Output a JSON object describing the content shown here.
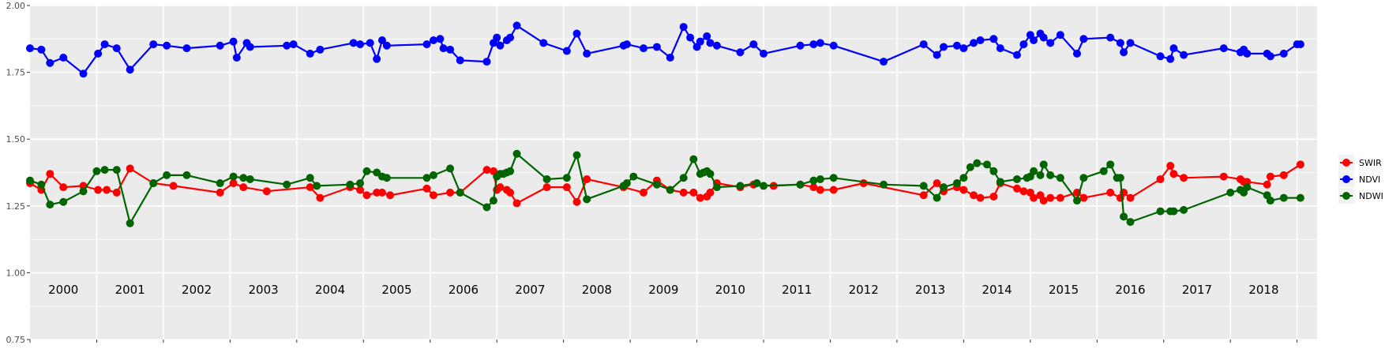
{
  "chart_data": {
    "type": "line",
    "panel_background": "#ebebeb",
    "grid": true,
    "grid_color": "#ffffff",
    "legend_position": "right",
    "ylim": [
      0.75,
      2.0
    ],
    "y_ticks": [
      {
        "value": 0.75,
        "label": "0.75"
      },
      {
        "value": 1.0,
        "label": "1.00"
      },
      {
        "value": 1.25,
        "label": "1.25"
      },
      {
        "value": 1.5,
        "label": "1.50"
      },
      {
        "value": 1.75,
        "label": "1.75"
      },
      {
        "value": 2.0,
        "label": "2.00"
      }
    ],
    "xlim": [
      2000.0,
      2019.3
    ],
    "x_axis_ticks_at_year_starts": true,
    "years": [
      "2000",
      "2001",
      "2002",
      "2003",
      "2004",
      "2005",
      "2006",
      "2007",
      "2008",
      "2009",
      "2010",
      "2011",
      "2012",
      "2013",
      "2014",
      "2015",
      "2016",
      "2017",
      "2018"
    ],
    "series": [
      {
        "name": "SWIR",
        "color": "#ff0000",
        "x": [
          2000.0,
          2000.17,
          2000.3,
          2000.5,
          2000.8,
          2001.02,
          2001.15,
          2001.3,
          2001.5,
          2001.85,
          2002.15,
          2002.85,
          2003.05,
          2003.2,
          2003.55,
          2004.2,
          2004.35,
          2004.8,
          2004.95,
          2005.05,
          2005.2,
          2005.28,
          2005.4,
          2005.95,
          2006.05,
          2006.3,
          2006.45,
          2006.85,
          2006.95,
          2007.0,
          2007.05,
          2007.15,
          2007.2,
          2007.3,
          2007.75,
          2008.05,
          2008.2,
          2008.35,
          2008.9,
          2009.2,
          2009.4,
          2009.6,
          2009.8,
          2009.95,
          2010.05,
          2010.15,
          2010.2,
          2010.3,
          2010.65,
          2010.85,
          2011.15,
          2011.55,
          2011.75,
          2011.85,
          2012.05,
          2012.5,
          2013.4,
          2013.6,
          2013.7,
          2013.9,
          2014.0,
          2014.15,
          2014.25,
          2014.45,
          2014.55,
          2014.8,
          2014.9,
          2015.0,
          2015.05,
          2015.15,
          2015.2,
          2015.3,
          2015.45,
          2015.7,
          2015.8,
          2016.2,
          2016.35,
          2016.4,
          2016.5,
          2016.95,
          2017.1,
          2017.15,
          2017.3,
          2017.9,
          2018.15,
          2018.2,
          2018.25,
          2018.55,
          2018.6,
          2018.8,
          2019.05
        ],
        "values": [
          1.335,
          1.31,
          1.37,
          1.32,
          1.325,
          1.31,
          1.31,
          1.3,
          1.39,
          1.335,
          1.325,
          1.3,
          1.335,
          1.32,
          1.305,
          1.32,
          1.28,
          1.32,
          1.31,
          1.29,
          1.3,
          1.3,
          1.29,
          1.315,
          1.29,
          1.3,
          1.3,
          1.385,
          1.38,
          1.31,
          1.32,
          1.31,
          1.3,
          1.26,
          1.32,
          1.32,
          1.265,
          1.35,
          1.32,
          1.3,
          1.345,
          1.31,
          1.3,
          1.3,
          1.28,
          1.285,
          1.3,
          1.335,
          1.32,
          1.33,
          1.325,
          1.33,
          1.32,
          1.31,
          1.31,
          1.335,
          1.29,
          1.335,
          1.305,
          1.32,
          1.31,
          1.29,
          1.28,
          1.285,
          1.335,
          1.315,
          1.305,
          1.3,
          1.28,
          1.29,
          1.27,
          1.28,
          1.28,
          1.3,
          1.28,
          1.3,
          1.28,
          1.3,
          1.28,
          1.35,
          1.4,
          1.37,
          1.355,
          1.36,
          1.35,
          1.34,
          1.34,
          1.33,
          1.36,
          1.365,
          1.405
        ]
      },
      {
        "name": "NDVI",
        "color": "#0000ff",
        "x": [
          2000.0,
          2000.17,
          2000.3,
          2000.5,
          2000.8,
          2001.02,
          2001.12,
          2001.3,
          2001.5,
          2001.85,
          2002.05,
          2002.35,
          2002.85,
          2003.05,
          2003.1,
          2003.25,
          2003.3,
          2003.85,
          2003.95,
          2004.2,
          2004.35,
          2004.85,
          2004.95,
          2005.1,
          2005.2,
          2005.28,
          2005.35,
          2005.95,
          2006.05,
          2006.15,
          2006.2,
          2006.3,
          2006.45,
          2006.85,
          2006.95,
          2007.0,
          2007.05,
          2007.15,
          2007.2,
          2007.3,
          2007.7,
          2008.05,
          2008.2,
          2008.35,
          2008.9,
          2008.95,
          2009.2,
          2009.4,
          2009.6,
          2009.8,
          2009.9,
          2010.0,
          2010.05,
          2010.15,
          2010.2,
          2010.3,
          2010.65,
          2010.85,
          2011.0,
          2011.55,
          2011.75,
          2011.85,
          2012.05,
          2012.8,
          2013.4,
          2013.6,
          2013.7,
          2013.9,
          2014.0,
          2014.15,
          2014.25,
          2014.45,
          2014.55,
          2014.8,
          2014.9,
          2015.0,
          2015.05,
          2015.15,
          2015.2,
          2015.3,
          2015.45,
          2015.7,
          2015.8,
          2016.2,
          2016.35,
          2016.4,
          2016.5,
          2016.95,
          2017.1,
          2017.15,
          2017.3,
          2017.9,
          2018.15,
          2018.2,
          2018.25,
          2018.55,
          2018.6,
          2018.8,
          2019.0,
          2019.05
        ],
        "values": [
          1.84,
          1.835,
          1.785,
          1.805,
          1.745,
          1.82,
          1.855,
          1.84,
          1.76,
          1.855,
          1.85,
          1.84,
          1.85,
          1.865,
          1.805,
          1.86,
          1.845,
          1.85,
          1.855,
          1.82,
          1.835,
          1.86,
          1.855,
          1.86,
          1.8,
          1.87,
          1.85,
          1.855,
          1.87,
          1.875,
          1.84,
          1.835,
          1.795,
          1.79,
          1.86,
          1.88,
          1.85,
          1.87,
          1.88,
          1.925,
          1.86,
          1.83,
          1.895,
          1.82,
          1.85,
          1.855,
          1.84,
          1.845,
          1.805,
          1.92,
          1.88,
          1.845,
          1.865,
          1.885,
          1.86,
          1.85,
          1.825,
          1.855,
          1.82,
          1.85,
          1.855,
          1.86,
          1.85,
          1.79,
          1.855,
          1.815,
          1.845,
          1.85,
          1.84,
          1.86,
          1.87,
          1.875,
          1.84,
          1.815,
          1.855,
          1.89,
          1.87,
          1.895,
          1.88,
          1.86,
          1.89,
          1.82,
          1.875,
          1.88,
          1.86,
          1.825,
          1.86,
          1.81,
          1.8,
          1.84,
          1.815,
          1.84,
          1.825,
          1.835,
          1.82,
          1.82,
          1.81,
          1.82,
          1.855,
          1.855
        ]
      },
      {
        "name": "NDWI",
        "color": "#006400",
        "x": [
          2000.0,
          2000.17,
          2000.3,
          2000.5,
          2000.8,
          2001.0,
          2001.12,
          2001.3,
          2001.5,
          2001.85,
          2002.05,
          2002.35,
          2002.85,
          2003.05,
          2003.2,
          2003.3,
          2003.85,
          2004.2,
          2004.3,
          2004.8,
          2004.95,
          2005.05,
          2005.2,
          2005.28,
          2005.35,
          2005.95,
          2006.05,
          2006.3,
          2006.45,
          2006.85,
          2006.95,
          2007.0,
          2007.05,
          2007.1,
          2007.15,
          2007.2,
          2007.3,
          2007.75,
          2008.05,
          2008.2,
          2008.35,
          2008.9,
          2008.95,
          2009.05,
          2009.4,
          2009.6,
          2009.8,
          2009.95,
          2010.05,
          2010.1,
          2010.15,
          2010.2,
          2010.3,
          2010.65,
          2010.9,
          2011.0,
          2011.55,
          2011.75,
          2011.85,
          2012.05,
          2012.8,
          2013.4,
          2013.6,
          2013.7,
          2013.9,
          2014.0,
          2014.1,
          2014.2,
          2014.35,
          2014.45,
          2014.55,
          2014.8,
          2014.95,
          2015.0,
          2015.05,
          2015.15,
          2015.2,
          2015.3,
          2015.45,
          2015.7,
          2015.8,
          2016.1,
          2016.2,
          2016.3,
          2016.35,
          2016.4,
          2016.5,
          2016.95,
          2017.1,
          2017.15,
          2017.3,
          2018.0,
          2018.15,
          2018.2,
          2018.25,
          2018.55,
          2018.6,
          2018.8,
          2019.05
        ],
        "values": [
          1.345,
          1.33,
          1.255,
          1.265,
          1.305,
          1.38,
          1.385,
          1.385,
          1.185,
          1.335,
          1.365,
          1.365,
          1.335,
          1.36,
          1.355,
          1.35,
          1.33,
          1.355,
          1.325,
          1.33,
          1.335,
          1.38,
          1.375,
          1.36,
          1.355,
          1.355,
          1.365,
          1.39,
          1.3,
          1.245,
          1.27,
          1.36,
          1.37,
          1.37,
          1.375,
          1.38,
          1.445,
          1.35,
          1.355,
          1.44,
          1.275,
          1.325,
          1.335,
          1.36,
          1.33,
          1.31,
          1.355,
          1.425,
          1.37,
          1.375,
          1.38,
          1.37,
          1.32,
          1.325,
          1.335,
          1.325,
          1.33,
          1.345,
          1.35,
          1.355,
          1.33,
          1.325,
          1.28,
          1.32,
          1.335,
          1.355,
          1.395,
          1.41,
          1.405,
          1.38,
          1.34,
          1.35,
          1.355,
          1.36,
          1.38,
          1.365,
          1.405,
          1.365,
          1.355,
          1.27,
          1.355,
          1.38,
          1.405,
          1.355,
          1.355,
          1.21,
          1.19,
          1.23,
          1.23,
          1.23,
          1.235,
          1.3,
          1.31,
          1.3,
          1.32,
          1.29,
          1.27,
          1.28,
          1.28
        ]
      }
    ]
  }
}
